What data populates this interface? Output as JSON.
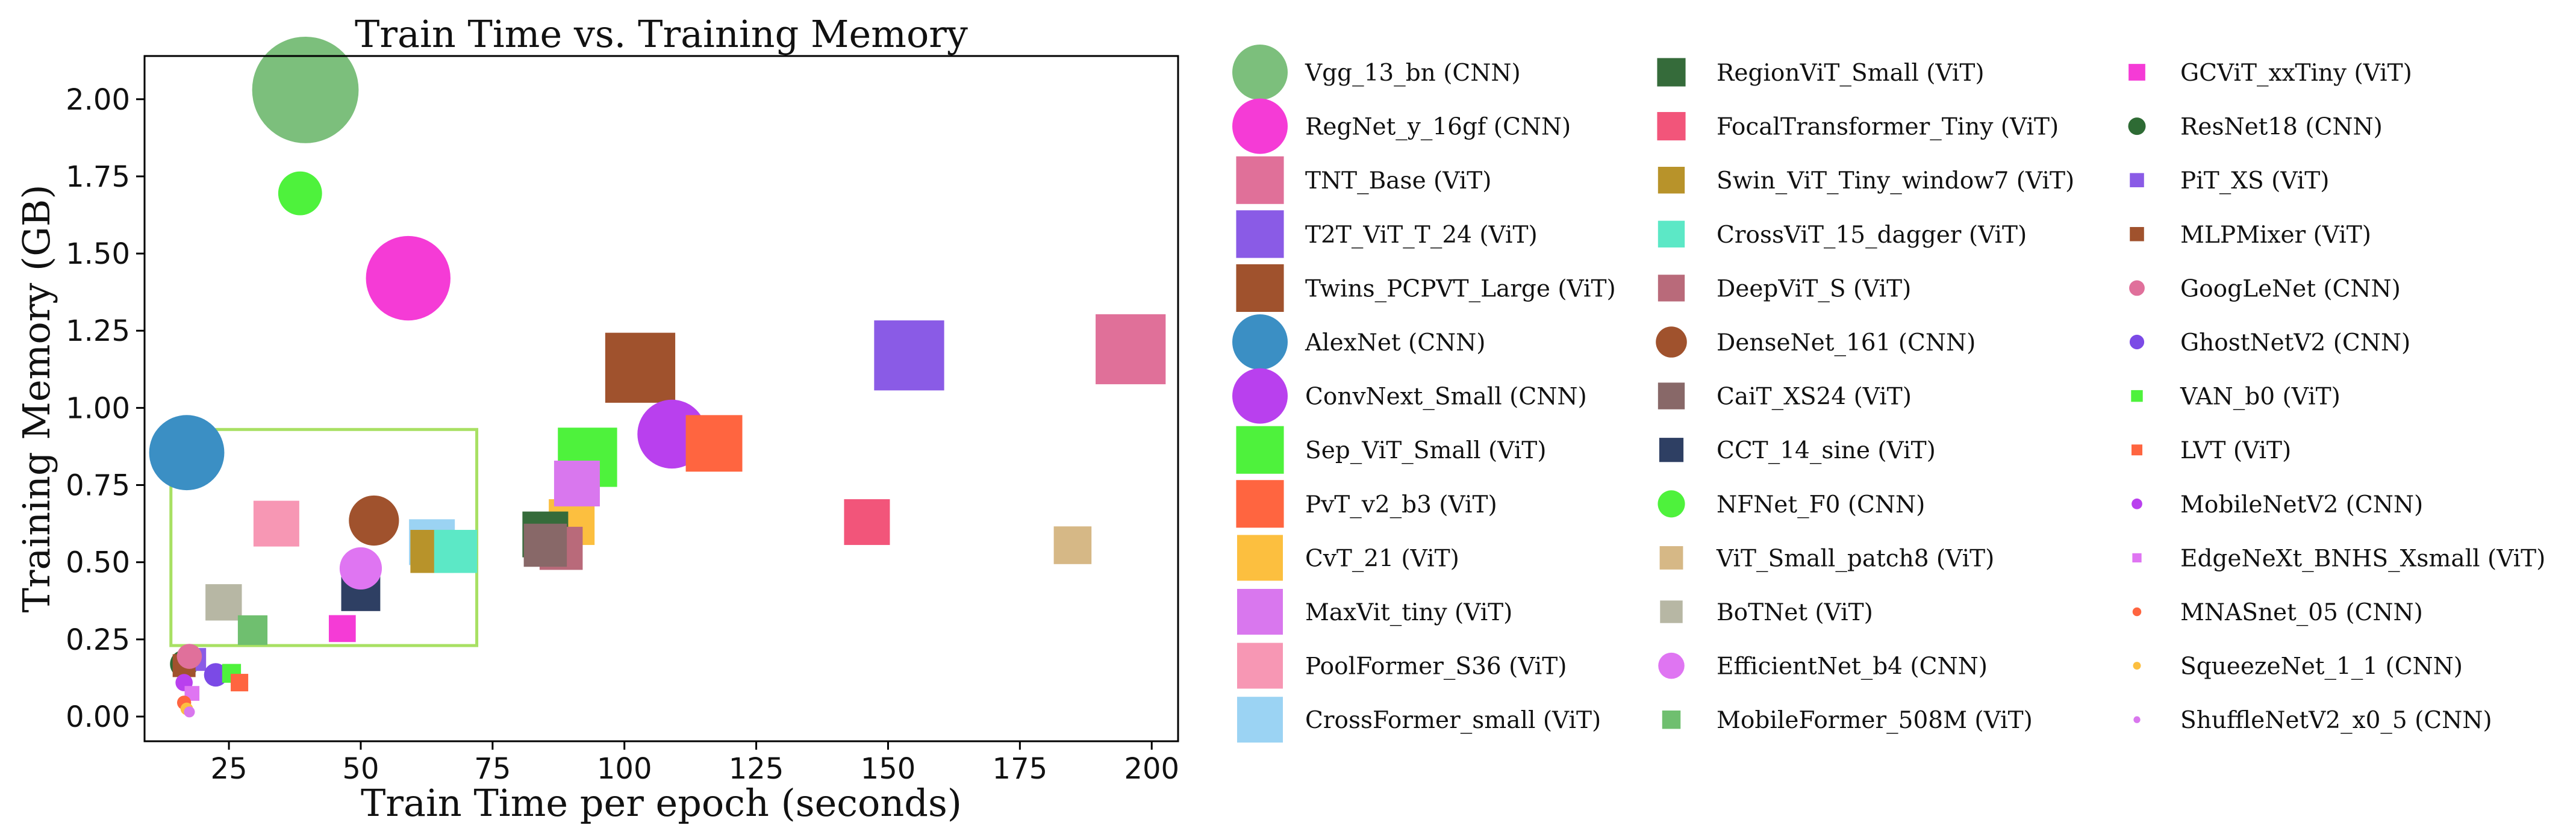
{
  "chart_data": {
    "type": "scatter",
    "title": "Train Time vs. Training  Memory",
    "xlabel": "Train Time per epoch (seconds)",
    "ylabel": "Training Memory (GB)",
    "xlim": [
      9,
      205
    ],
    "ylim": [
      -0.08,
      2.14
    ],
    "xticks": [
      25,
      50,
      75,
      100,
      125,
      150,
      175,
      200
    ],
    "yticks": [
      0.0,
      0.25,
      0.5,
      0.75,
      1.0,
      1.25,
      1.5,
      1.75,
      2.0
    ],
    "ytick_labels": [
      "0.00",
      "0.25",
      "0.50",
      "0.75",
      "1.00",
      "1.25",
      "1.50",
      "1.75",
      "2.00"
    ],
    "highlight_box": {
      "x": [
        14,
        72
      ],
      "y": [
        0.23,
        0.93
      ],
      "color": "#a8e063"
    },
    "legend_position": "outside-right",
    "legend_columns": 3,
    "points": [
      {
        "name": "Vgg_13_bn (CNN)",
        "x": 39.5,
        "y": 2.03,
        "shape": "circle",
        "size": 3.4,
        "color": "#7cbf7c"
      },
      {
        "name": "RegNet_y_16gf (CNN)",
        "x": 59,
        "y": 1.42,
        "shape": "circle",
        "size": 2.7,
        "color": "#f53bd6"
      },
      {
        "name": "TNT_Base (ViT)",
        "x": 196,
        "y": 1.19,
        "shape": "square",
        "size": 2.6,
        "color": "#e07099"
      },
      {
        "name": "T2T_ViT_T_24 (ViT)",
        "x": 154,
        "y": 1.17,
        "shape": "square",
        "size": 2.6,
        "color": "#8a5be6"
      },
      {
        "name": "Twins_PCPVT_Large (ViT)",
        "x": 103,
        "y": 1.13,
        "shape": "square",
        "size": 2.6,
        "color": "#a0522d"
      },
      {
        "name": "AlexNet (CNN)",
        "x": 17,
        "y": 0.855,
        "shape": "circle",
        "size": 2.4,
        "color": "#3b8fc4"
      },
      {
        "name": "ConvNext_Small (CNN)",
        "x": 109,
        "y": 0.915,
        "shape": "circle",
        "size": 2.2,
        "color": "#b940ee"
      },
      {
        "name": "Sep_ViT_Small (ViT)",
        "x": 93,
        "y": 0.84,
        "shape": "square",
        "size": 2.2,
        "color": "#4ef23c"
      },
      {
        "name": "PvT_v2_b3 (ViT)",
        "x": 117,
        "y": 0.885,
        "shape": "square",
        "size": 2.1,
        "color": "#ff6540"
      },
      {
        "name": "CvT_21 (ViT)",
        "x": 90,
        "y": 0.63,
        "shape": "square",
        "size": 1.7,
        "color": "#fcbf3f"
      },
      {
        "name": "MaxVit_tiny (ViT)",
        "x": 91,
        "y": 0.755,
        "shape": "square",
        "size": 1.7,
        "color": "#d977ee"
      },
      {
        "name": "PoolFormer_S36 (ViT)",
        "x": 34,
        "y": 0.625,
        "shape": "square",
        "size": 1.7,
        "color": "#f797b4"
      },
      {
        "name": "CrossFormer_small (ViT)",
        "x": 63.5,
        "y": 0.565,
        "shape": "square",
        "size": 1.7,
        "color": "#9bd3f3"
      },
      {
        "name": "RegionViT_Small (ViT)",
        "x": 85,
        "y": 0.59,
        "shape": "square",
        "size": 1.7,
        "color": "#356b3a"
      },
      {
        "name": "FocalTransformer_Tiny (ViT)",
        "x": 146,
        "y": 0.63,
        "shape": "square",
        "size": 1.7,
        "color": "#f2557a"
      },
      {
        "name": "Swin_ViT_Tiny_window7 (ViT)",
        "x": 63.5,
        "y": 0.535,
        "shape": "square",
        "size": 1.6,
        "color": "#b8932a"
      },
      {
        "name": "CrossViT_15_dagger (ViT)",
        "x": 68,
        "y": 0.535,
        "shape": "square",
        "size": 1.6,
        "color": "#5ce8c6"
      },
      {
        "name": "DeepViT_S (ViT)",
        "x": 88,
        "y": 0.545,
        "shape": "square",
        "size": 1.6,
        "color": "#b96a7a"
      },
      {
        "name": "DenseNet_161 (CNN)",
        "x": 52.5,
        "y": 0.635,
        "shape": "circle",
        "size": 1.6,
        "color": "#a0522d"
      },
      {
        "name": "CaiT_XS24 (ViT)",
        "x": 85,
        "y": 0.555,
        "shape": "square",
        "size": 1.6,
        "color": "#886868"
      },
      {
        "name": "CCT_14_sine (ViT)",
        "x": 50,
        "y": 0.405,
        "shape": "square",
        "size": 1.45,
        "color": "#2e3f63"
      },
      {
        "name": "NFNet_F0 (CNN)",
        "x": 38.5,
        "y": 1.695,
        "shape": "circle",
        "size": 1.4,
        "color": "#4ef23c"
      },
      {
        "name": "ViT_Small_patch8 (ViT)",
        "x": 185,
        "y": 0.555,
        "shape": "square",
        "size": 1.4,
        "color": "#d6b886"
      },
      {
        "name": "BoTNet (ViT)",
        "x": 24,
        "y": 0.37,
        "shape": "square",
        "size": 1.35,
        "color": "#b7b7a4"
      },
      {
        "name": "EfficientNet_b4 (CNN)",
        "x": 50,
        "y": 0.48,
        "shape": "circle",
        "size": 1.35,
        "color": "#df75f2"
      },
      {
        "name": "MobileFormer_508M (ViT)",
        "x": 29.5,
        "y": 0.28,
        "shape": "square",
        "size": 1.1,
        "color": "#6fbf6f"
      },
      {
        "name": "GCViT_xxTiny (ViT)",
        "x": 46.5,
        "y": 0.285,
        "shape": "square",
        "size": 1.0,
        "color": "#f53bd6"
      },
      {
        "name": "ResNet18 (CNN)",
        "x": 16.5,
        "y": 0.17,
        "shape": "circle",
        "size": 0.9,
        "color": "#2e6b34"
      },
      {
        "name": "PiT_XS (ViT)",
        "x": 18.5,
        "y": 0.185,
        "shape": "square",
        "size": 0.85,
        "color": "#8a5be6"
      },
      {
        "name": "MLPMixer (ViT)",
        "x": 16.5,
        "y": 0.165,
        "shape": "square",
        "size": 0.85,
        "color": "#a0522d"
      },
      {
        "name": "GoogLeNet (CNN)",
        "x": 17.5,
        "y": 0.195,
        "shape": "circle",
        "size": 0.8,
        "color": "#e0709b"
      },
      {
        "name": "GhostNetV2 (CNN)",
        "x": 22.5,
        "y": 0.135,
        "shape": "circle",
        "size": 0.75,
        "color": "#7b4ae6"
      },
      {
        "name": "VAN_b0 (ViT)",
        "x": 25.5,
        "y": 0.14,
        "shape": "square",
        "size": 0.7,
        "color": "#4ef23c"
      },
      {
        "name": "LVT (ViT)",
        "x": 27,
        "y": 0.11,
        "shape": "square",
        "size": 0.65,
        "color": "#ff6540"
      },
      {
        "name": "MobileNetV2 (CNN)",
        "x": 16.5,
        "y": 0.11,
        "shape": "circle",
        "size": 0.55,
        "color": "#b940ee"
      },
      {
        "name": "EdgeNeXt_BNHS_Xsmall (ViT)",
        "x": 18,
        "y": 0.075,
        "shape": "square",
        "size": 0.55,
        "color": "#df75f2"
      },
      {
        "name": "MNASnet_05 (CNN)",
        "x": 16.5,
        "y": 0.045,
        "shape": "circle",
        "size": 0.45,
        "color": "#ff6540"
      },
      {
        "name": "SqueezeNet_1_1 (CNN)",
        "x": 17,
        "y": 0.025,
        "shape": "circle",
        "size": 0.4,
        "color": "#fcbf3f"
      },
      {
        "name": "ShuffleNetV2_x0_5 (CNN)",
        "x": 17.5,
        "y": 0.015,
        "shape": "circle",
        "size": 0.35,
        "color": "#d977ee"
      }
    ]
  }
}
